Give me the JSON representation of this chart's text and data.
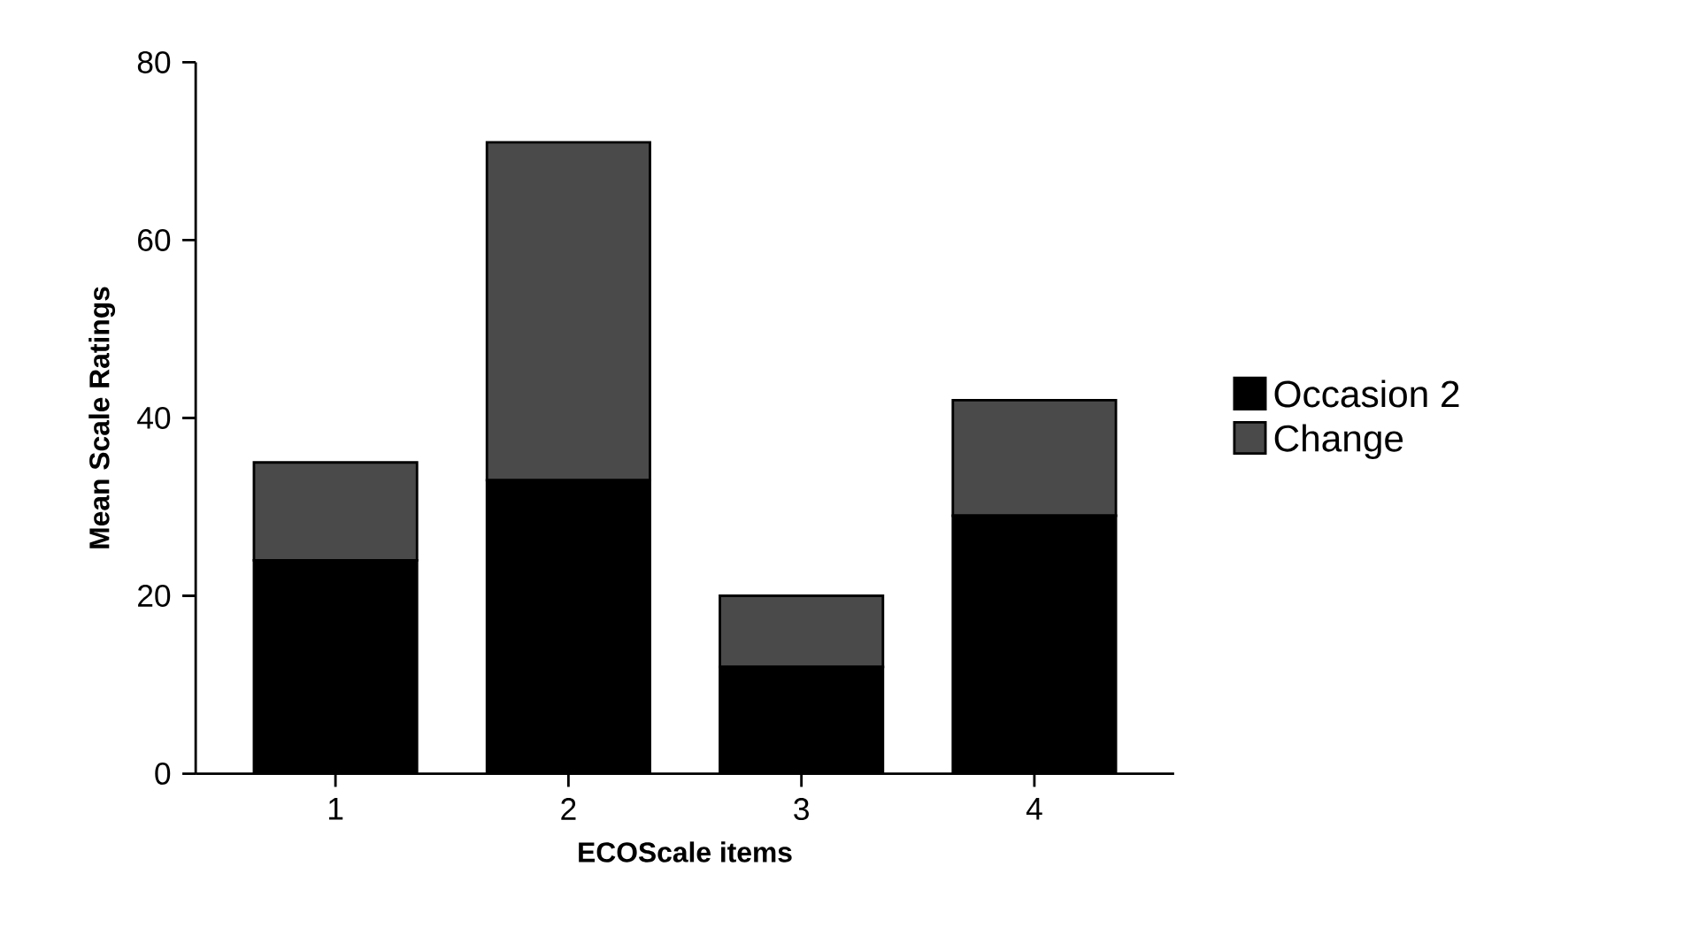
{
  "chart_data": {
    "type": "bar",
    "stacked": true,
    "xlabel": "ECOScale items",
    "ylabel": "Mean Scale Ratings",
    "categories": [
      "1",
      "2",
      "3",
      "4"
    ],
    "series": [
      {
        "name": "Occasion 2",
        "color": "#000000",
        "values": [
          24,
          33,
          12,
          29
        ]
      },
      {
        "name": "Change",
        "color": "#4a4a4a",
        "values": [
          11,
          38,
          8,
          13
        ]
      }
    ],
    "ylim": [
      0,
      80
    ],
    "yticks": [
      0,
      20,
      40,
      60,
      80
    ],
    "legend": "right"
  }
}
